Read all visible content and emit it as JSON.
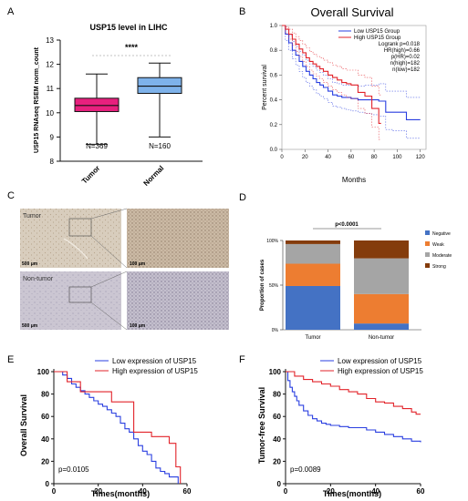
{
  "panel_letters": {
    "A": "A",
    "B": "B",
    "C": "C",
    "D": "D",
    "E": "E",
    "F": "F"
  },
  "chart_data": [
    {
      "panel": "A",
      "type": "box",
      "title": "USP15 level in LIHC",
      "ylabel": "USP15 RNAseq RSEM norm_count",
      "ylim": [
        8,
        13
      ],
      "yticks": [
        8,
        9,
        10,
        11,
        12,
        13
      ],
      "categories": [
        "Tumor",
        "Normal"
      ],
      "boxes": [
        {
          "name": "Tumor",
          "min": 8.7,
          "q1": 10.05,
          "median": 10.3,
          "q3": 10.6,
          "max": 11.6,
          "n_label": "N=369",
          "color": "#e8207e"
        },
        {
          "name": "Normal",
          "min": 9.0,
          "q1": 10.8,
          "median": 11.1,
          "q3": 11.45,
          "max": 12.05,
          "n_label": "N=160",
          "color": "#7eb2ea"
        }
      ],
      "significance": "****"
    },
    {
      "panel": "B",
      "type": "line",
      "title": "Overall Survival",
      "xlabel": "Months",
      "ylabel": "Percent survival",
      "xlim": [
        0,
        125
      ],
      "ylim": [
        0,
        1.0
      ],
      "xticks": [
        0,
        20,
        40,
        60,
        80,
        100,
        120
      ],
      "yticks": [
        0.0,
        0.2,
        0.4,
        0.6,
        0.8,
        1.0
      ],
      "legend": [
        "Low USP15 Group",
        "High USP15 Group"
      ],
      "stats": [
        "Logrank p=0.018",
        "HR(high)=0.66",
        "p(HR)=0.02",
        "n(high)=182",
        "n(low)=182"
      ],
      "series": [
        {
          "name": "Low USP15 Group",
          "color": "#2a3fe0",
          "x": [
            0,
            3,
            6,
            9,
            12,
            15,
            18,
            21,
            24,
            27,
            30,
            33,
            36,
            40,
            44,
            48,
            52,
            56,
            60,
            66,
            72,
            78,
            84,
            90,
            96,
            102,
            108,
            114,
            120
          ],
          "y": [
            1.0,
            0.93,
            0.86,
            0.8,
            0.76,
            0.71,
            0.67,
            0.63,
            0.6,
            0.57,
            0.54,
            0.52,
            0.5,
            0.47,
            0.44,
            0.43,
            0.42,
            0.42,
            0.41,
            0.4,
            0.4,
            0.4,
            0.39,
            0.3,
            0.3,
            0.3,
            0.24,
            0.24,
            0.24
          ],
          "lower": [
            1.0,
            0.88,
            0.8,
            0.73,
            0.68,
            0.63,
            0.58,
            0.54,
            0.51,
            0.48,
            0.45,
            0.43,
            0.41,
            0.38,
            0.35,
            0.34,
            0.33,
            0.32,
            0.31,
            0.3,
            0.29,
            0.28,
            0.27,
            0.16,
            0.15,
            0.15,
            0.09,
            0.09,
            0.09
          ],
          "upper": [
            1.0,
            0.97,
            0.92,
            0.87,
            0.83,
            0.79,
            0.76,
            0.72,
            0.69,
            0.67,
            0.64,
            0.62,
            0.6,
            0.57,
            0.54,
            0.53,
            0.52,
            0.52,
            0.52,
            0.51,
            0.52,
            0.52,
            0.53,
            0.47,
            0.47,
            0.47,
            0.42,
            0.42,
            0.42
          ]
        },
        {
          "name": "High USP15 Group",
          "color": "#e2232a",
          "x": [
            0,
            3,
            6,
            9,
            12,
            15,
            18,
            21,
            24,
            27,
            30,
            33,
            36,
            40,
            44,
            48,
            52,
            56,
            60,
            66,
            72,
            78,
            84,
            86
          ],
          "y": [
            1.0,
            0.97,
            0.93,
            0.89,
            0.85,
            0.81,
            0.78,
            0.74,
            0.71,
            0.69,
            0.67,
            0.65,
            0.63,
            0.6,
            0.58,
            0.56,
            0.54,
            0.53,
            0.52,
            0.46,
            0.43,
            0.33,
            0.21,
            0.21
          ],
          "lower": [
            1.0,
            0.94,
            0.89,
            0.84,
            0.79,
            0.75,
            0.71,
            0.67,
            0.64,
            0.61,
            0.59,
            0.57,
            0.54,
            0.51,
            0.48,
            0.46,
            0.44,
            0.42,
            0.41,
            0.33,
            0.29,
            0.18,
            0.08,
            0.08
          ],
          "upper": [
            1.0,
            0.99,
            0.97,
            0.94,
            0.91,
            0.88,
            0.85,
            0.82,
            0.79,
            0.77,
            0.75,
            0.74,
            0.72,
            0.7,
            0.68,
            0.67,
            0.65,
            0.64,
            0.64,
            0.6,
            0.58,
            0.51,
            0.44,
            0.44
          ]
        }
      ]
    },
    {
      "panel": "C",
      "type": "image",
      "labels": {
        "tumor": "Tumor",
        "non_tumor": "Non-tumor",
        "scale_500": "500 μm",
        "scale_100": "100 μm"
      }
    },
    {
      "panel": "D",
      "type": "bar",
      "stacked": true,
      "ylabel": "Proportion of cases",
      "ylim": [
        0,
        100
      ],
      "yticks": [
        "0%",
        "50%",
        "100%"
      ],
      "categories": [
        "Tumor",
        "Non-tumor"
      ],
      "pvalue": "p<0.0001",
      "series": [
        {
          "name": "Negative",
          "color": "#4472c4",
          "values": [
            49,
            7
          ]
        },
        {
          "name": "Weak",
          "color": "#ed7d31",
          "values": [
            25,
            33
          ]
        },
        {
          "name": "Moderate",
          "color": "#a5a5a5",
          "values": [
            22,
            40
          ]
        },
        {
          "name": "Strong",
          "color": "#843c0c",
          "values": [
            4,
            20
          ]
        }
      ]
    },
    {
      "panel": "E",
      "type": "line",
      "xlabel": "Times(months)",
      "ylabel": "Overall Survival",
      "xlim": [
        0,
        60
      ],
      "ylim": [
        0,
        100
      ],
      "xticks": [
        0,
        20,
        40,
        60
      ],
      "yticks": [
        0,
        20,
        40,
        60,
        80,
        100
      ],
      "pvalue": "p=0.0105",
      "series": [
        {
          "name": "Low expression of USP15",
          "color": "#2a3fe0",
          "x": [
            0,
            4,
            6,
            8,
            10,
            12,
            14,
            16,
            18,
            20,
            22,
            24,
            26,
            28,
            30,
            32,
            34,
            36,
            38,
            40,
            42,
            44,
            46,
            48,
            50,
            52,
            56
          ],
          "y": [
            100,
            97,
            94,
            89,
            86,
            83,
            80,
            77,
            74,
            71,
            69,
            66,
            63,
            60,
            54,
            49,
            46,
            40,
            34,
            29,
            26,
            20,
            14,
            11,
            9,
            6,
            0
          ]
        },
        {
          "name": "High expression of USP15",
          "color": "#e2232a",
          "x": [
            0,
            6,
            12,
            20,
            26,
            36,
            40,
            44,
            48,
            52,
            55,
            57
          ],
          "y": [
            100,
            91,
            82,
            82,
            73,
            46,
            46,
            42,
            42,
            36,
            15,
            0
          ]
        }
      ]
    },
    {
      "panel": "F",
      "type": "line",
      "xlabel": "Times(months)",
      "ylabel": "Tumor-free Survival",
      "xlim": [
        0,
        60
      ],
      "ylim": [
        0,
        100
      ],
      "xticks": [
        0,
        20,
        40,
        60
      ],
      "yticks": [
        0,
        20,
        40,
        60,
        80,
        100
      ],
      "pvalue": "p=0.0089",
      "series": [
        {
          "name": "Low expression of USP15",
          "color": "#2a3fe0",
          "x": [
            0,
            1,
            2,
            3,
            4,
            5,
            6,
            8,
            10,
            12,
            14,
            16,
            18,
            20,
            24,
            28,
            32,
            36,
            40,
            44,
            48,
            52,
            56,
            60
          ],
          "y": [
            100,
            92,
            86,
            82,
            78,
            74,
            70,
            65,
            61,
            58,
            56,
            54,
            53,
            52,
            51,
            50,
            50,
            48,
            46,
            44,
            42,
            40,
            38,
            37
          ]
        },
        {
          "name": "High expression of USP15",
          "color": "#e2232a",
          "x": [
            0,
            4,
            8,
            12,
            16,
            20,
            24,
            28,
            32,
            36,
            40,
            44,
            48,
            52,
            56,
            58,
            60
          ],
          "y": [
            100,
            96,
            93,
            91,
            89,
            87,
            84,
            82,
            80,
            76,
            73,
            72,
            69,
            67,
            64,
            62,
            62
          ]
        }
      ]
    }
  ]
}
